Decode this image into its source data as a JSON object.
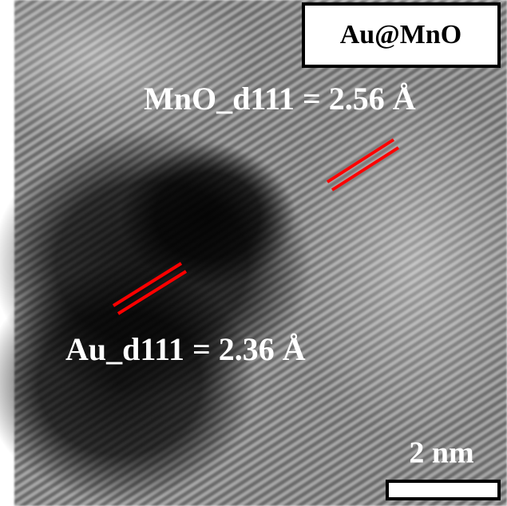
{
  "image": {
    "label": "Au@MnO",
    "annotations": [
      "MnO_d111 = 2.56 Å",
      "Au_d111 = 2.36 Å"
    ],
    "scale_bar": "2 nm"
  }
}
